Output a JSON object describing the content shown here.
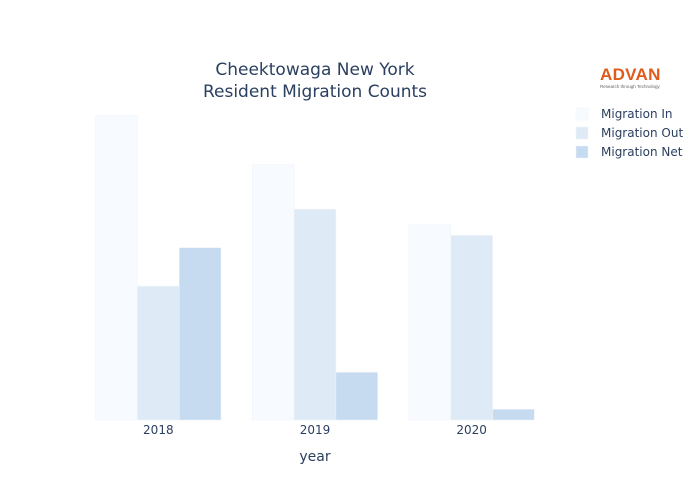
{
  "chart_data": {
    "type": "bar",
    "title_lines": [
      "Cheektowaga New York",
      "Resident Migration Counts"
    ],
    "xlabel": "year",
    "ylabel": "",
    "categories": [
      "2018",
      "2019",
      "2020"
    ],
    "series": [
      {
        "name": "Migration In",
        "color": "#f7fbff",
        "values": [
          9900,
          8300,
          6350
        ]
      },
      {
        "name": "Migration Out",
        "color": "#deebf7",
        "values": [
          4350,
          6850,
          6000
        ]
      },
      {
        "name": "Migration Net",
        "color": "#c6dbef",
        "values": [
          5600,
          1550,
          350
        ]
      }
    ],
    "ylim": [
      0,
      10400
    ],
    "legend_position": "top-right",
    "grid": false
  },
  "logo": {
    "brand": "ADVAN",
    "tagline": "Research through Technology"
  }
}
